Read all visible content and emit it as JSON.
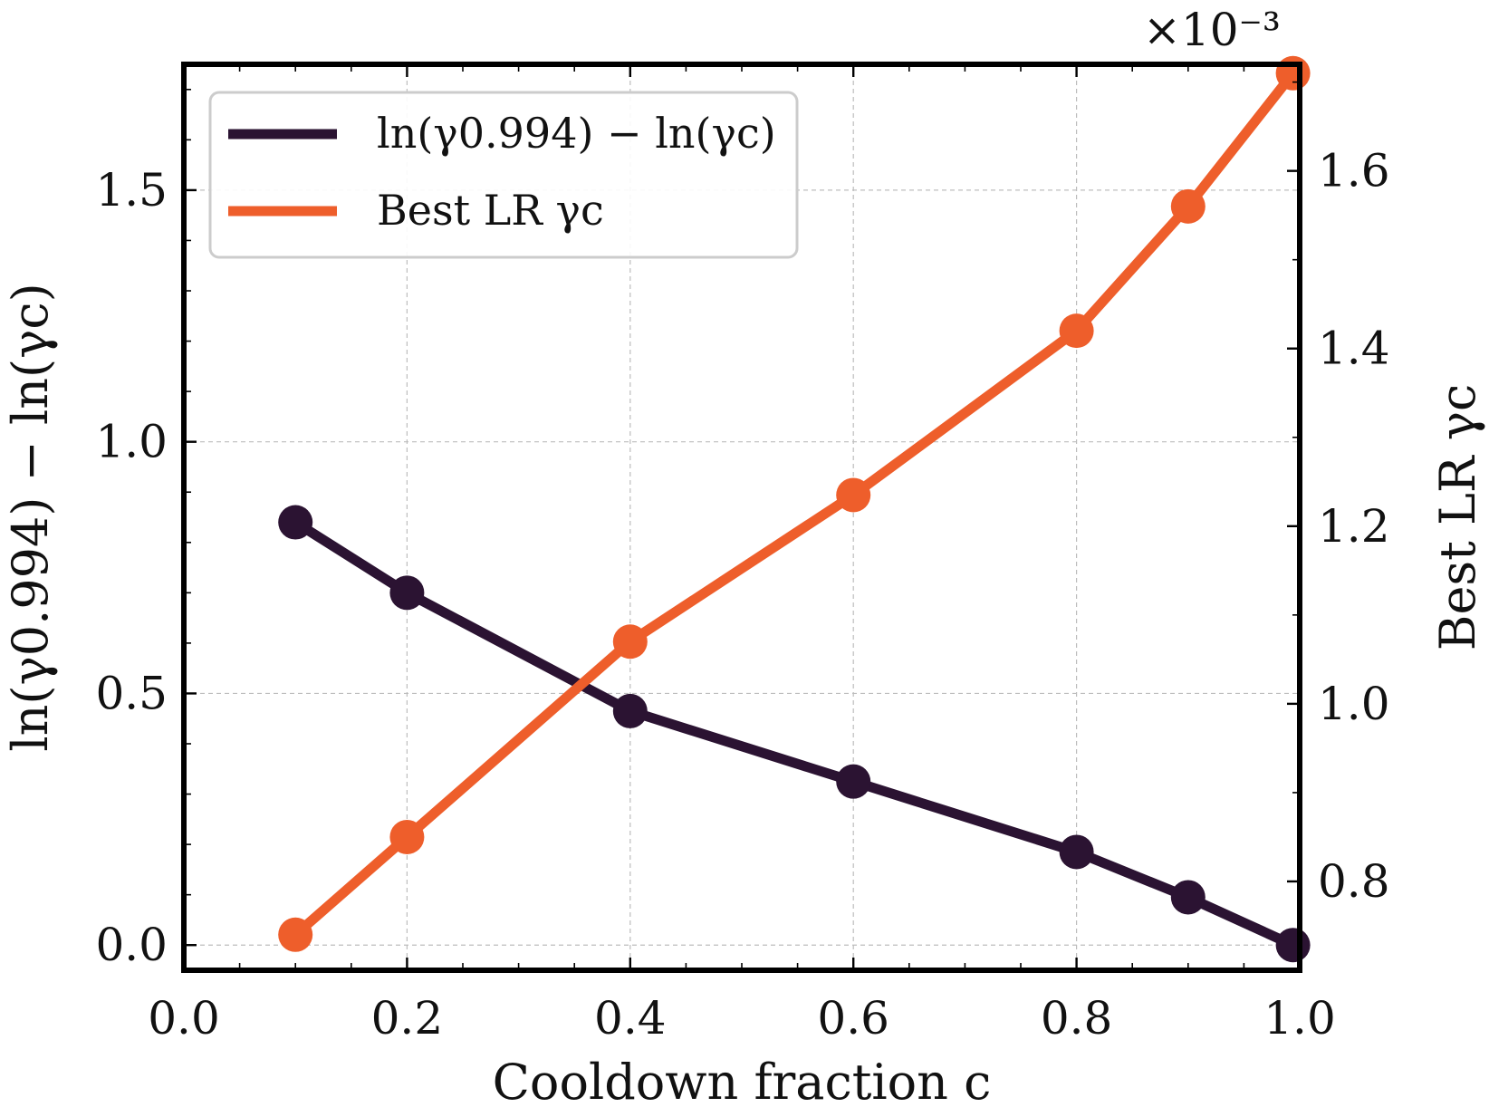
{
  "chart_data": {
    "type": "line",
    "x": [
      0.1,
      0.2,
      0.4,
      0.6,
      0.8,
      0.9,
      0.994
    ],
    "xlabel": "Cooldown fraction c",
    "xlim": [
      0.0,
      1.0
    ],
    "x_ticks": [
      "0.0",
      "0.2",
      "0.4",
      "0.6",
      "0.8",
      "1.0"
    ],
    "grid": true,
    "legend_position": "upper-left",
    "series": [
      {
        "name": "ln(γ0.994) − ln(γc)",
        "axis": "left",
        "color": "#2b1332",
        "values": [
          0.84,
          0.7,
          0.465,
          0.325,
          0.185,
          0.095,
          0.0
        ]
      },
      {
        "name": "Best LR γc",
        "axis": "right",
        "color": "#ee5e2b",
        "values": [
          0.74,
          0.85,
          1.07,
          1.235,
          1.42,
          1.56,
          1.71
        ],
        "scale_multiplier": "×10⁻³"
      }
    ],
    "y_left": {
      "label": "ln(γ0.994) − ln(γc)",
      "ylim": [
        -0.05,
        1.75
      ],
      "ticks": [
        "0.0",
        "0.5",
        "1.0",
        "1.5"
      ]
    },
    "y_right": {
      "label": "Best LR γc",
      "ylim": [
        0.7,
        1.72
      ],
      "ticks": [
        "0.8",
        "1.0",
        "1.2",
        "1.4",
        "1.6"
      ],
      "multiplier": "×10⁻³"
    }
  }
}
